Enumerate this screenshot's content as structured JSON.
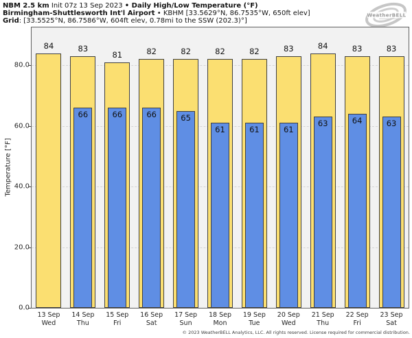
{
  "header": {
    "line1": [
      {
        "t": "NBM 2.5 km"
      },
      {
        "t": " Init 07z 13 Sep 2023 "
      },
      {
        "t": "• Daily High/Low Temperature (°F)"
      }
    ],
    "line2": [
      {
        "t": "Birmingham-Shuttlesworth Int'l Airport"
      },
      {
        "t": " • KBHM [33.5629°N, 86.7535°W, 650ft elev]"
      }
    ],
    "line3": [
      {
        "t": "Grid"
      },
      {
        "t": ": [33.5525°N, 86.7586°W, 604ft elev, 0.78mi to the SSW (202.3)°]"
      }
    ]
  },
  "logo": {
    "text": "WeatherBELL"
  },
  "footer": {
    "copyright": "© 2023 WeatherBELL Analytics, LLC. All rights reserved. License required for commercial distribution."
  },
  "chart_data": {
    "type": "bar",
    "title": "NBM 2.5 km Init 07z 13 Sep 2023 • Daily High/Low Temperature (°F)",
    "subtitle": "Birmingham-Shuttlesworth Int'l Airport • KBHM",
    "categories": [
      {
        "date": "13 Sep",
        "dow": "Wed"
      },
      {
        "date": "14 Sep",
        "dow": "Thu"
      },
      {
        "date": "15 Sep",
        "dow": "Fri"
      },
      {
        "date": "16 Sep",
        "dow": "Sat"
      },
      {
        "date": "17 Sep",
        "dow": "Sun"
      },
      {
        "date": "18 Sep",
        "dow": "Mon"
      },
      {
        "date": "19 Sep",
        "dow": "Tue"
      },
      {
        "date": "20 Sep",
        "dow": "Wed"
      },
      {
        "date": "21 Sep",
        "dow": "Thu"
      },
      {
        "date": "22 Sep",
        "dow": "Fri"
      },
      {
        "date": "23 Sep",
        "dow": "Sat"
      }
    ],
    "series": [
      {
        "name": "High",
        "color": "#FBDF71",
        "values": [
          84,
          83,
          81,
          82,
          82,
          82,
          82,
          83,
          84,
          83,
          83
        ]
      },
      {
        "name": "Low",
        "color": "#5F8EE4",
        "values": [
          null,
          66,
          66,
          66,
          65,
          61,
          61,
          61,
          63,
          64,
          63
        ]
      }
    ],
    "xlabel": "",
    "ylabel": "Temperature [°F]",
    "yticks": [
      0,
      20,
      40,
      60,
      80
    ],
    "ytick_labels": [
      "0.0",
      "20.0",
      "40.0",
      "60.0",
      "80.0"
    ],
    "ylim": [
      0,
      92.5
    ],
    "grid": "horizontal dashed at yticks",
    "legend": "none",
    "bar_border_color": "#3f3f3f",
    "plot_bg": "#f2f2f2"
  }
}
